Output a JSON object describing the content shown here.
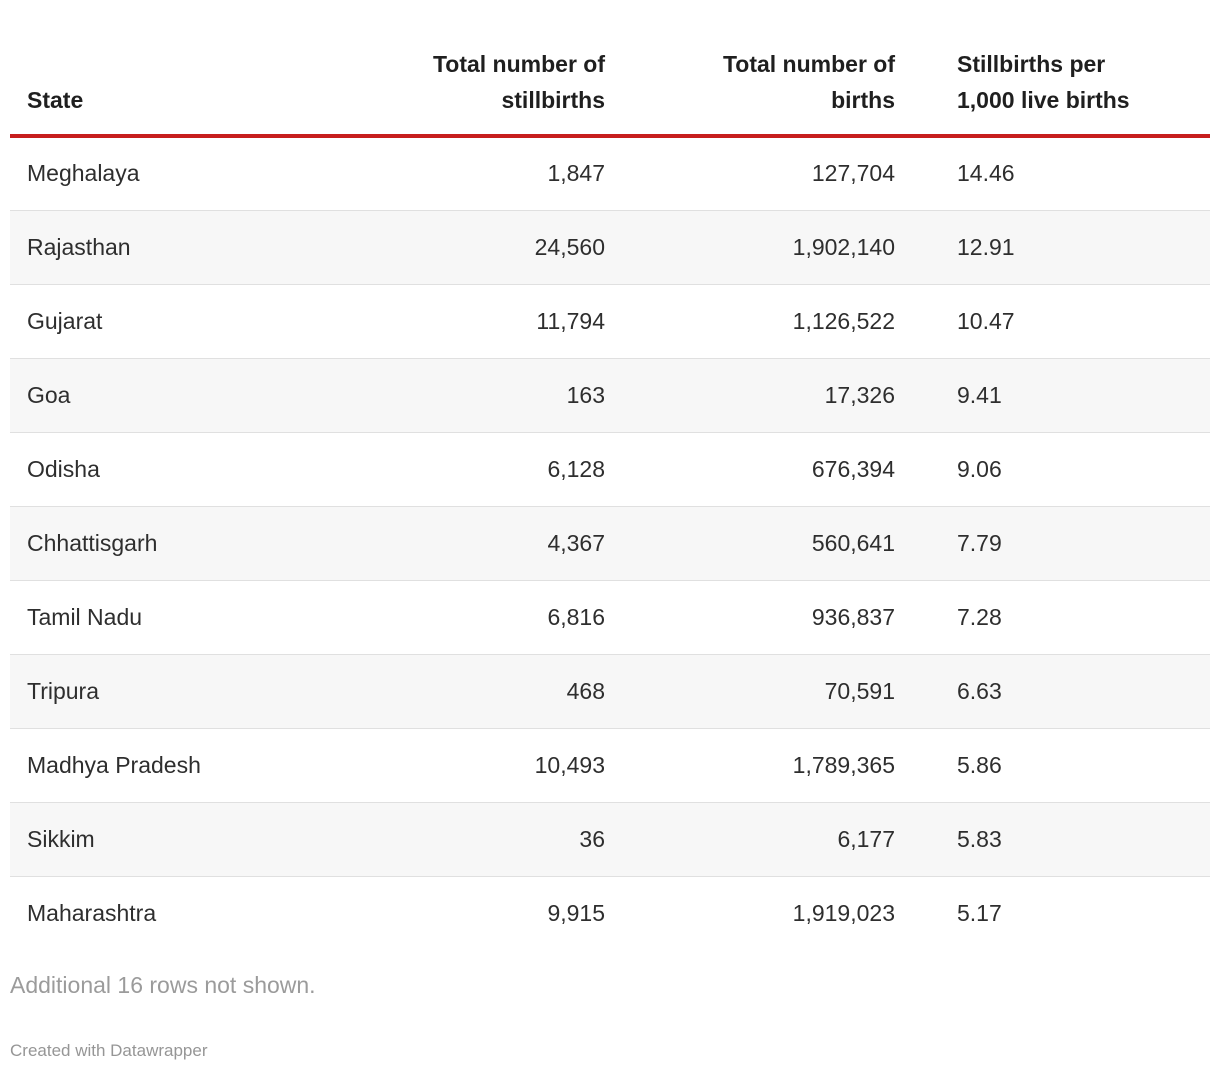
{
  "table": {
    "columns": [
      {
        "id": "state",
        "label": "State",
        "align": "left"
      },
      {
        "id": "stillbirths",
        "label": "Total number of\nstillbirths",
        "align": "right"
      },
      {
        "id": "births",
        "label": "Total number of\nbirths",
        "align": "right"
      },
      {
        "id": "rate",
        "label": "Stillbirths per\n1,000 live births",
        "align": "left"
      }
    ],
    "rows": [
      [
        "Meghalaya",
        "1,847",
        "127,704",
        "14.46"
      ],
      [
        "Rajasthan",
        "24,560",
        "1,902,140",
        "12.91"
      ],
      [
        "Gujarat",
        "11,794",
        "1,126,522",
        "10.47"
      ],
      [
        "Goa",
        "163",
        "17,326",
        "9.41"
      ],
      [
        "Odisha",
        "6,128",
        "676,394",
        "9.06"
      ],
      [
        "Chhattisgarh",
        "4,367",
        "560,641",
        "7.79"
      ],
      [
        "Tamil Nadu",
        "6,816",
        "936,837",
        "7.28"
      ],
      [
        "Tripura",
        "468",
        "70,591",
        "6.63"
      ],
      [
        "Madhya Pradesh",
        "10,493",
        "1,789,365",
        "5.86"
      ],
      [
        "Sikkim",
        "36",
        "6,177",
        "5.83"
      ],
      [
        "Maharashtra",
        "9,915",
        "1,919,023",
        "5.17"
      ]
    ]
  },
  "footer": {
    "note": "Additional 16 rows not shown.",
    "attribution": "Created with Datawrapper"
  },
  "colors": {
    "header_rule_red": "#c71e1d",
    "row_stripe": "#f7f7f7",
    "row_border": "#e0e0e0",
    "header_text": "#1f1f1f",
    "body_text": "#2e2e2e",
    "muted_text": "#9b9b9b",
    "background": "#ffffff"
  },
  "chart_data": {
    "type": "table",
    "title": "",
    "columns": [
      "State",
      "Total number of stillbirths",
      "Total number of births",
      "Stillbirths per 1,000 live births"
    ],
    "rows": [
      {
        "state": "Meghalaya",
        "stillbirths": 1847,
        "births": 127704,
        "rate_per_1000": 14.46
      },
      {
        "state": "Rajasthan",
        "stillbirths": 24560,
        "births": 1902140,
        "rate_per_1000": 12.91
      },
      {
        "state": "Gujarat",
        "stillbirths": 11794,
        "births": 1126522,
        "rate_per_1000": 10.47
      },
      {
        "state": "Goa",
        "stillbirths": 163,
        "births": 17326,
        "rate_per_1000": 9.41
      },
      {
        "state": "Odisha",
        "stillbirths": 6128,
        "births": 676394,
        "rate_per_1000": 9.06
      },
      {
        "state": "Chhattisgarh",
        "stillbirths": 4367,
        "births": 560641,
        "rate_per_1000": 7.79
      },
      {
        "state": "Tamil Nadu",
        "stillbirths": 6816,
        "births": 936837,
        "rate_per_1000": 7.28
      },
      {
        "state": "Tripura",
        "stillbirths": 468,
        "births": 70591,
        "rate_per_1000": 6.63
      },
      {
        "state": "Madhya Pradesh",
        "stillbirths": 10493,
        "births": 1789365,
        "rate_per_1000": 5.86
      },
      {
        "state": "Sikkim",
        "stillbirths": 36,
        "births": 6177,
        "rate_per_1000": 5.83
      },
      {
        "state": "Maharashtra",
        "stillbirths": 9915,
        "births": 1919023,
        "rate_per_1000": 5.17
      }
    ],
    "sorted_by": "rate_per_1000 descending",
    "grid": "horizontal row separators, alternating row stripes",
    "note": "Additional 16 rows not shown.",
    "attribution": "Created with Datawrapper"
  }
}
